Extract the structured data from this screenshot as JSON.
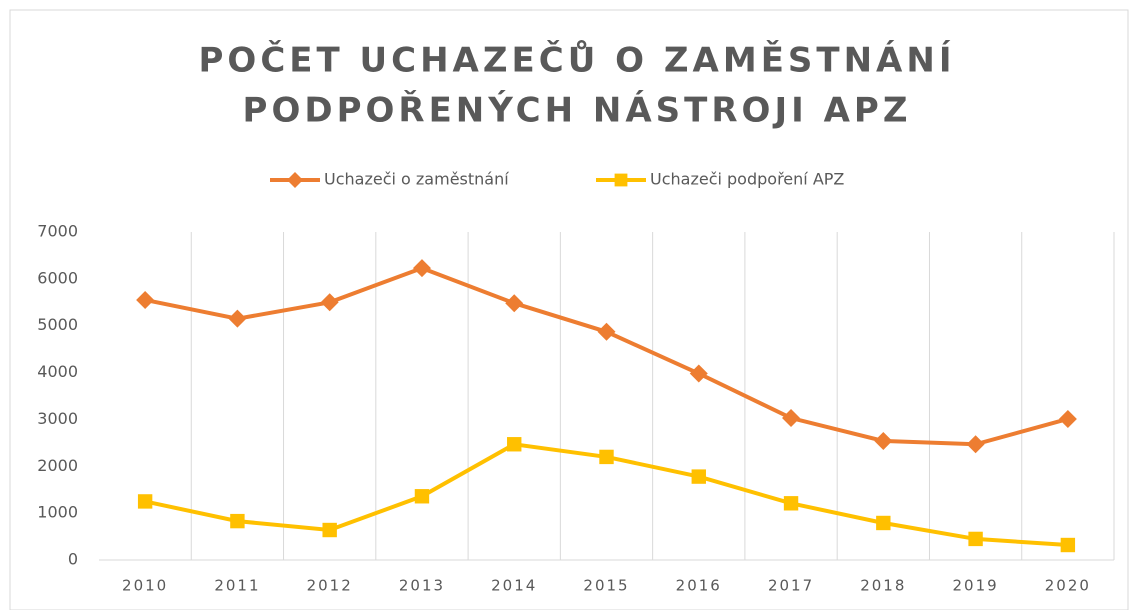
{
  "chart_data": {
    "type": "line",
    "title": [
      "POČET UCHAZEČŮ O ZAMĚSTNÁNÍ",
      "PODPOŘENÝCH NÁSTROJI APZ"
    ],
    "categories": [
      "2010",
      "2011",
      "2012",
      "2013",
      "2014",
      "2015",
      "2016",
      "2017",
      "2018",
      "2019",
      "2020"
    ],
    "series": [
      {
        "name": "Uchazeči o zaměstnání",
        "color": "#ed7d31",
        "marker": "diamond",
        "values": [
          5550,
          5150,
          5500,
          6230,
          5480,
          4870,
          3980,
          3030,
          2540,
          2470,
          3010
        ]
      },
      {
        "name": "Uchazeči podpoření APZ",
        "color": "#ffc000",
        "marker": "square",
        "values": [
          1250,
          830,
          640,
          1360,
          2470,
          2200,
          1780,
          1210,
          790,
          450,
          320
        ]
      }
    ],
    "ylim": [
      0,
      7000
    ],
    "yticks": [
      0,
      1000,
      2000,
      3000,
      4000,
      5000,
      6000,
      7000
    ],
    "grid": "vertical",
    "legend": "top"
  }
}
